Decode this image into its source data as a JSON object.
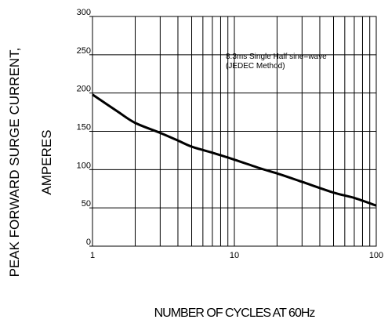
{
  "chart_data": {
    "type": "line",
    "title": "",
    "xlabel": "NUMBER OF CYCLES AT 60Hz",
    "ylabel_line1": "PEAK FORWARD SURGE CURRENT,",
    "ylabel_line2": "AMPERES",
    "xscale": "log",
    "xlim": [
      1,
      100
    ],
    "ylim": [
      0,
      300
    ],
    "grid": true,
    "x_ticks": [
      {
        "value": 1,
        "label": "1"
      },
      {
        "value": 10,
        "label": "10"
      },
      {
        "value": 100,
        "label": "100"
      }
    ],
    "y_ticks": [
      {
        "value": 0,
        "label": "0"
      },
      {
        "value": 50,
        "label": "50"
      },
      {
        "value": 100,
        "label": "100"
      },
      {
        "value": 150,
        "label": "150"
      },
      {
        "value": 200,
        "label": "200"
      },
      {
        "value": 250,
        "label": "250"
      },
      {
        "value": 300,
        "label": "300"
      }
    ],
    "annotation_line1": "8.3ms Single Half  sine=wave",
    "annotation_line2": "(JEDEC Method)",
    "series": [
      {
        "points": [
          {
            "x": 1,
            "y": 198
          },
          {
            "x": 1.5,
            "y": 176
          },
          {
            "x": 2,
            "y": 161
          },
          {
            "x": 3,
            "y": 148
          },
          {
            "x": 4,
            "y": 138
          },
          {
            "x": 5,
            "y": 130
          },
          {
            "x": 7,
            "y": 122
          },
          {
            "x": 10,
            "y": 113
          },
          {
            "x": 15,
            "y": 102
          },
          {
            "x": 20,
            "y": 95
          },
          {
            "x": 30,
            "y": 84
          },
          {
            "x": 50,
            "y": 70
          },
          {
            "x": 70,
            "y": 63
          },
          {
            "x": 100,
            "y": 53
          }
        ]
      }
    ],
    "colors": {
      "line": "#000000",
      "grid": "#000000"
    }
  }
}
